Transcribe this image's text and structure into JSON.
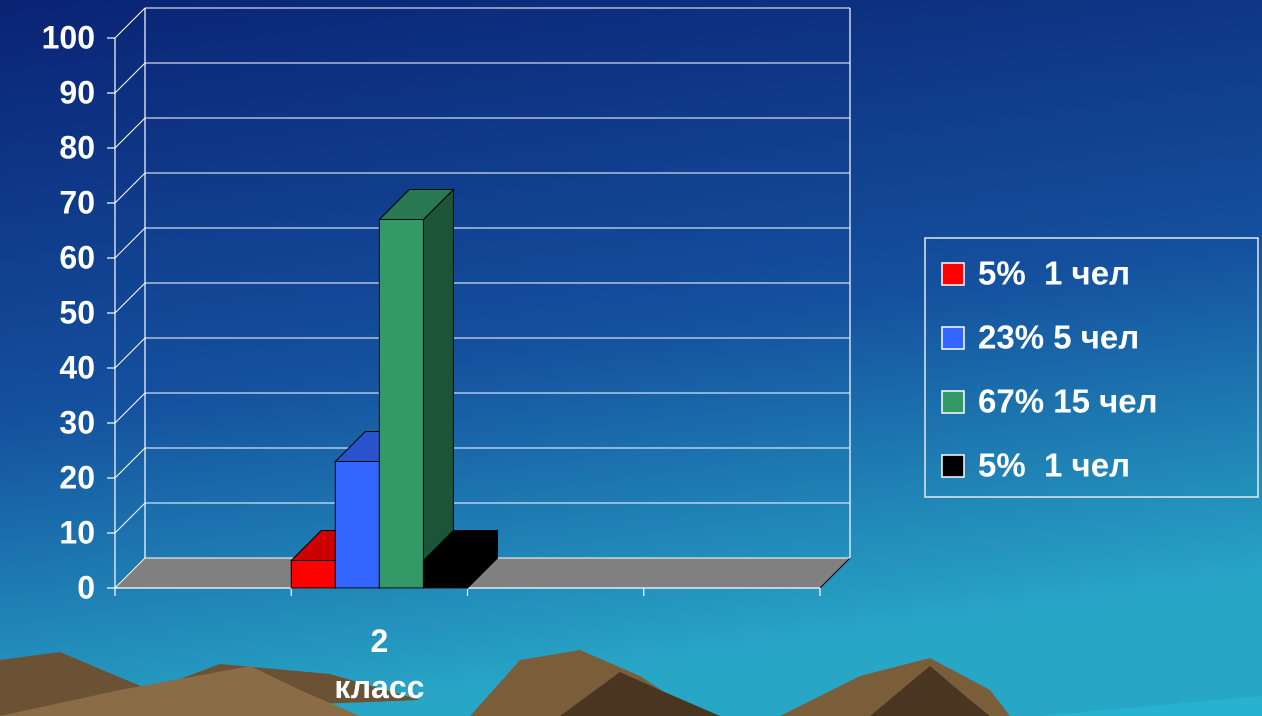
{
  "chart_data": {
    "type": "bar",
    "categories": [
      null,
      "2 класс",
      null,
      null
    ],
    "series": [
      {
        "name": "5%  1 чел",
        "color": "#ff0000",
        "values": [
          null,
          5,
          null,
          null
        ]
      },
      {
        "name": "23% 5 чел",
        "color": "#3366ff",
        "values": [
          null,
          23,
          null,
          null
        ]
      },
      {
        "name": "67% 15 чел",
        "color": "#339966",
        "values": [
          null,
          67,
          null,
          null
        ]
      },
      {
        "name": "5%  1 чел",
        "color": "#000000",
        "values": [
          null,
          5,
          null,
          null
        ]
      }
    ],
    "ylim": [
      0,
      100
    ],
    "yticks": [
      0,
      10,
      20,
      30,
      40,
      50,
      60,
      70,
      80,
      90,
      100
    ],
    "grid": true,
    "legend": "right"
  }
}
